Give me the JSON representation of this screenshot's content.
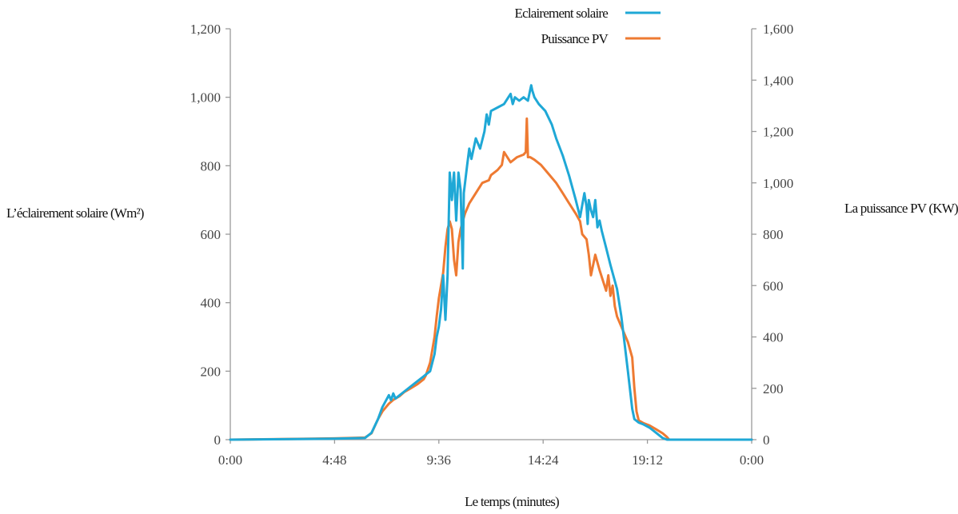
{
  "chart_data": {
    "type": "line",
    "xlabel": "Le temps (minutes)",
    "ylabel_left": "L’éclairement solaire (Wm²)",
    "ylabel_right": "La puissance PV (KW)",
    "x_ticks": [
      "0:00",
      "4:48",
      "9:36",
      "14:24",
      "19:12",
      "0:00"
    ],
    "x_range_hours": [
      0,
      24
    ],
    "y_left_range": [
      0,
      1200
    ],
    "y_left_ticks": [
      "0",
      "200",
      "400",
      "600",
      "800",
      "1,000",
      "1,200"
    ],
    "y_right_range": [
      0,
      1600
    ],
    "y_right_ticks": [
      "0",
      "200",
      "400",
      "600",
      "800",
      "1,000",
      "1,200",
      "1,400",
      "1,600"
    ],
    "grid": false,
    "legend_position": "top-center",
    "colors": {
      "irradiance": "#1fa8d6",
      "pv": "#ee7a32"
    },
    "series": [
      {
        "name": "Eclairement solaire",
        "axis": "left",
        "x_hours": [
          0,
          4.8,
          6.2,
          6.5,
          6.8,
          7.0,
          7.3,
          7.4,
          7.5,
          7.6,
          7.8,
          8.0,
          8.3,
          8.6,
          8.9,
          9.0,
          9.2,
          9.4,
          9.5,
          9.6,
          9.7,
          9.8,
          9.9,
          10.0,
          10.1,
          10.2,
          10.25,
          10.3,
          10.4,
          10.5,
          10.6,
          10.7,
          10.75,
          10.9,
          11.0,
          11.1,
          11.3,
          11.5,
          11.7,
          11.8,
          11.9,
          12.0,
          12.3,
          12.6,
          12.9,
          13.0,
          13.1,
          13.3,
          13.5,
          13.7,
          13.8,
          13.85,
          13.9,
          14.0,
          14.2,
          14.5,
          14.8,
          15.0,
          15.3,
          15.6,
          15.9,
          16.1,
          16.3,
          16.4,
          16.45,
          16.5,
          16.6,
          16.7,
          16.8,
          16.9,
          17.0,
          17.1,
          17.3,
          17.5,
          17.8,
          18.0,
          18.3,
          18.5,
          18.6,
          18.7,
          18.8,
          19.0,
          19.3,
          19.6,
          19.9,
          20.1,
          20.2,
          21.0,
          22.0,
          24.0
        ],
        "values": [
          0,
          3,
          5,
          20,
          60,
          95,
          130,
          115,
          135,
          120,
          130,
          140,
          155,
          170,
          185,
          190,
          200,
          250,
          300,
          330,
          380,
          480,
          350,
          480,
          780,
          700,
          750,
          780,
          640,
          780,
          730,
          500,
          720,
          800,
          850,
          820,
          880,
          850,
          900,
          950,
          920,
          960,
          970,
          980,
          1010,
          980,
          1000,
          990,
          1000,
          990,
          1020,
          1035,
          1020,
          1000,
          980,
          960,
          920,
          880,
          830,
          770,
          700,
          650,
          720,
          680,
          630,
          700,
          670,
          650,
          700,
          620,
          640,
          610,
          560,
          510,
          440,
          360,
          200,
          90,
          60,
          55,
          50,
          45,
          35,
          20,
          5,
          0,
          0,
          0,
          0,
          0
        ]
      },
      {
        "name": "Puissance PV",
        "axis": "right",
        "x_hours": [
          0,
          4.8,
          6.2,
          6.5,
          6.8,
          7.0,
          7.3,
          7.5,
          7.8,
          8.0,
          8.3,
          8.6,
          8.9,
          9.0,
          9.2,
          9.4,
          9.5,
          9.6,
          9.7,
          9.8,
          9.9,
          10.0,
          10.1,
          10.2,
          10.3,
          10.4,
          10.5,
          10.6,
          10.7,
          10.8,
          10.9,
          11.0,
          11.3,
          11.6,
          11.9,
          12.0,
          12.3,
          12.5,
          12.6,
          12.9,
          13.2,
          13.5,
          13.6,
          13.65,
          13.7,
          13.8,
          14.0,
          14.3,
          14.6,
          15.0,
          15.3,
          15.6,
          15.9,
          16.1,
          16.2,
          16.4,
          16.5,
          16.6,
          16.8,
          17.0,
          17.3,
          17.4,
          17.5,
          17.6,
          17.7,
          17.8,
          18.0,
          18.3,
          18.5,
          18.6,
          18.7,
          18.8,
          19.0,
          19.3,
          19.6,
          19.9,
          20.1,
          20.2,
          21.0,
          22.0,
          24.0
        ],
        "values": [
          0,
          5,
          8,
          25,
          80,
          110,
          140,
          155,
          170,
          185,
          200,
          215,
          235,
          250,
          300,
          400,
          480,
          550,
          600,
          650,
          750,
          820,
          850,
          820,
          700,
          640,
          770,
          820,
          850,
          880,
          900,
          920,
          960,
          1000,
          1010,
          1030,
          1050,
          1070,
          1120,
          1080,
          1100,
          1110,
          1120,
          1250,
          1100,
          1100,
          1090,
          1070,
          1040,
          1000,
          960,
          920,
          880,
          850,
          800,
          780,
          720,
          640,
          720,
          660,
          580,
          640,
          560,
          600,
          520,
          480,
          440,
          380,
          320,
          200,
          110,
          75,
          65,
          55,
          40,
          25,
          10,
          0,
          0,
          0,
          0
        ]
      }
    ]
  }
}
